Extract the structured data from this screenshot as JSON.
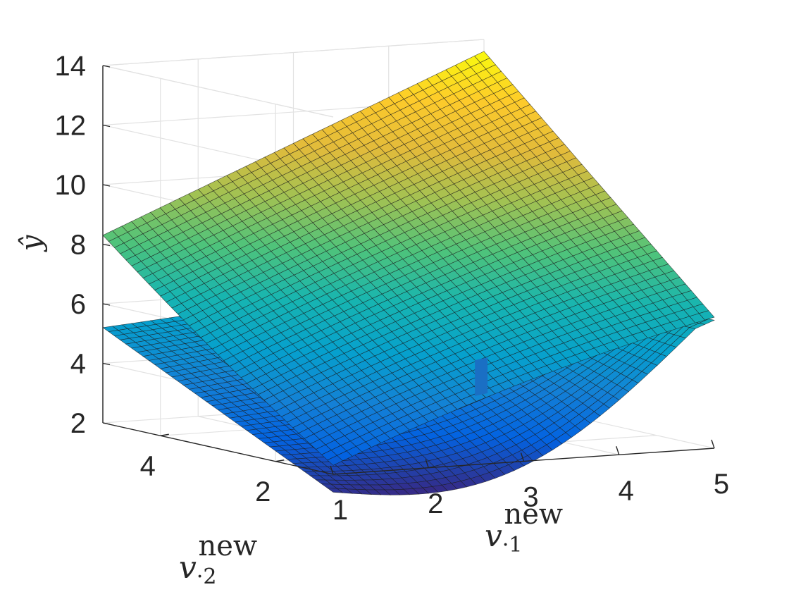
{
  "chart_data": {
    "type": "surface",
    "title": "",
    "colormap": "parula",
    "grid": true,
    "axes": {
      "x": {
        "symbol": "v",
        "subscript": "·1",
        "superscript": "new",
        "range": [
          1,
          5
        ],
        "ticks": [
          1,
          2,
          3,
          4,
          5
        ],
        "tick_labels": [
          "1",
          "2",
          "3",
          "4",
          "5"
        ]
      },
      "y": {
        "symbol": "v",
        "subscript": "·2",
        "superscript": "new",
        "range": [
          1,
          5
        ],
        "ticks": [
          2,
          4
        ],
        "tick_labels": [
          "2",
          "4"
        ]
      },
      "z": {
        "symbol": "ŷ",
        "range": [
          2,
          14
        ],
        "ticks": [
          2,
          4,
          6,
          8,
          10,
          12,
          14
        ],
        "tick_labels": [
          "2",
          "4",
          "6",
          "8",
          "10",
          "12",
          "14"
        ]
      }
    },
    "series": [
      {
        "kind": "bowl",
        "corner_values": {
          "x1_y1": 1.4,
          "x5_y1": 6.3,
          "x1_y5": 5.2,
          "x5_y5": 6.2
        },
        "minimum": {
          "x": 2.4,
          "y": 1.0,
          "z": 1.1
        }
      },
      {
        "kind": "saddle",
        "corner_values": {
          "x1_y1": 2.3,
          "x5_y1": 6.4,
          "x1_y5": 8.3,
          "x5_y5": 13.6
        }
      }
    ],
    "marker": {
      "x": 3.4,
      "y": 2.4,
      "z_range": [
        3.5,
        4.7
      ],
      "color": "#1a6fc4"
    }
  }
}
